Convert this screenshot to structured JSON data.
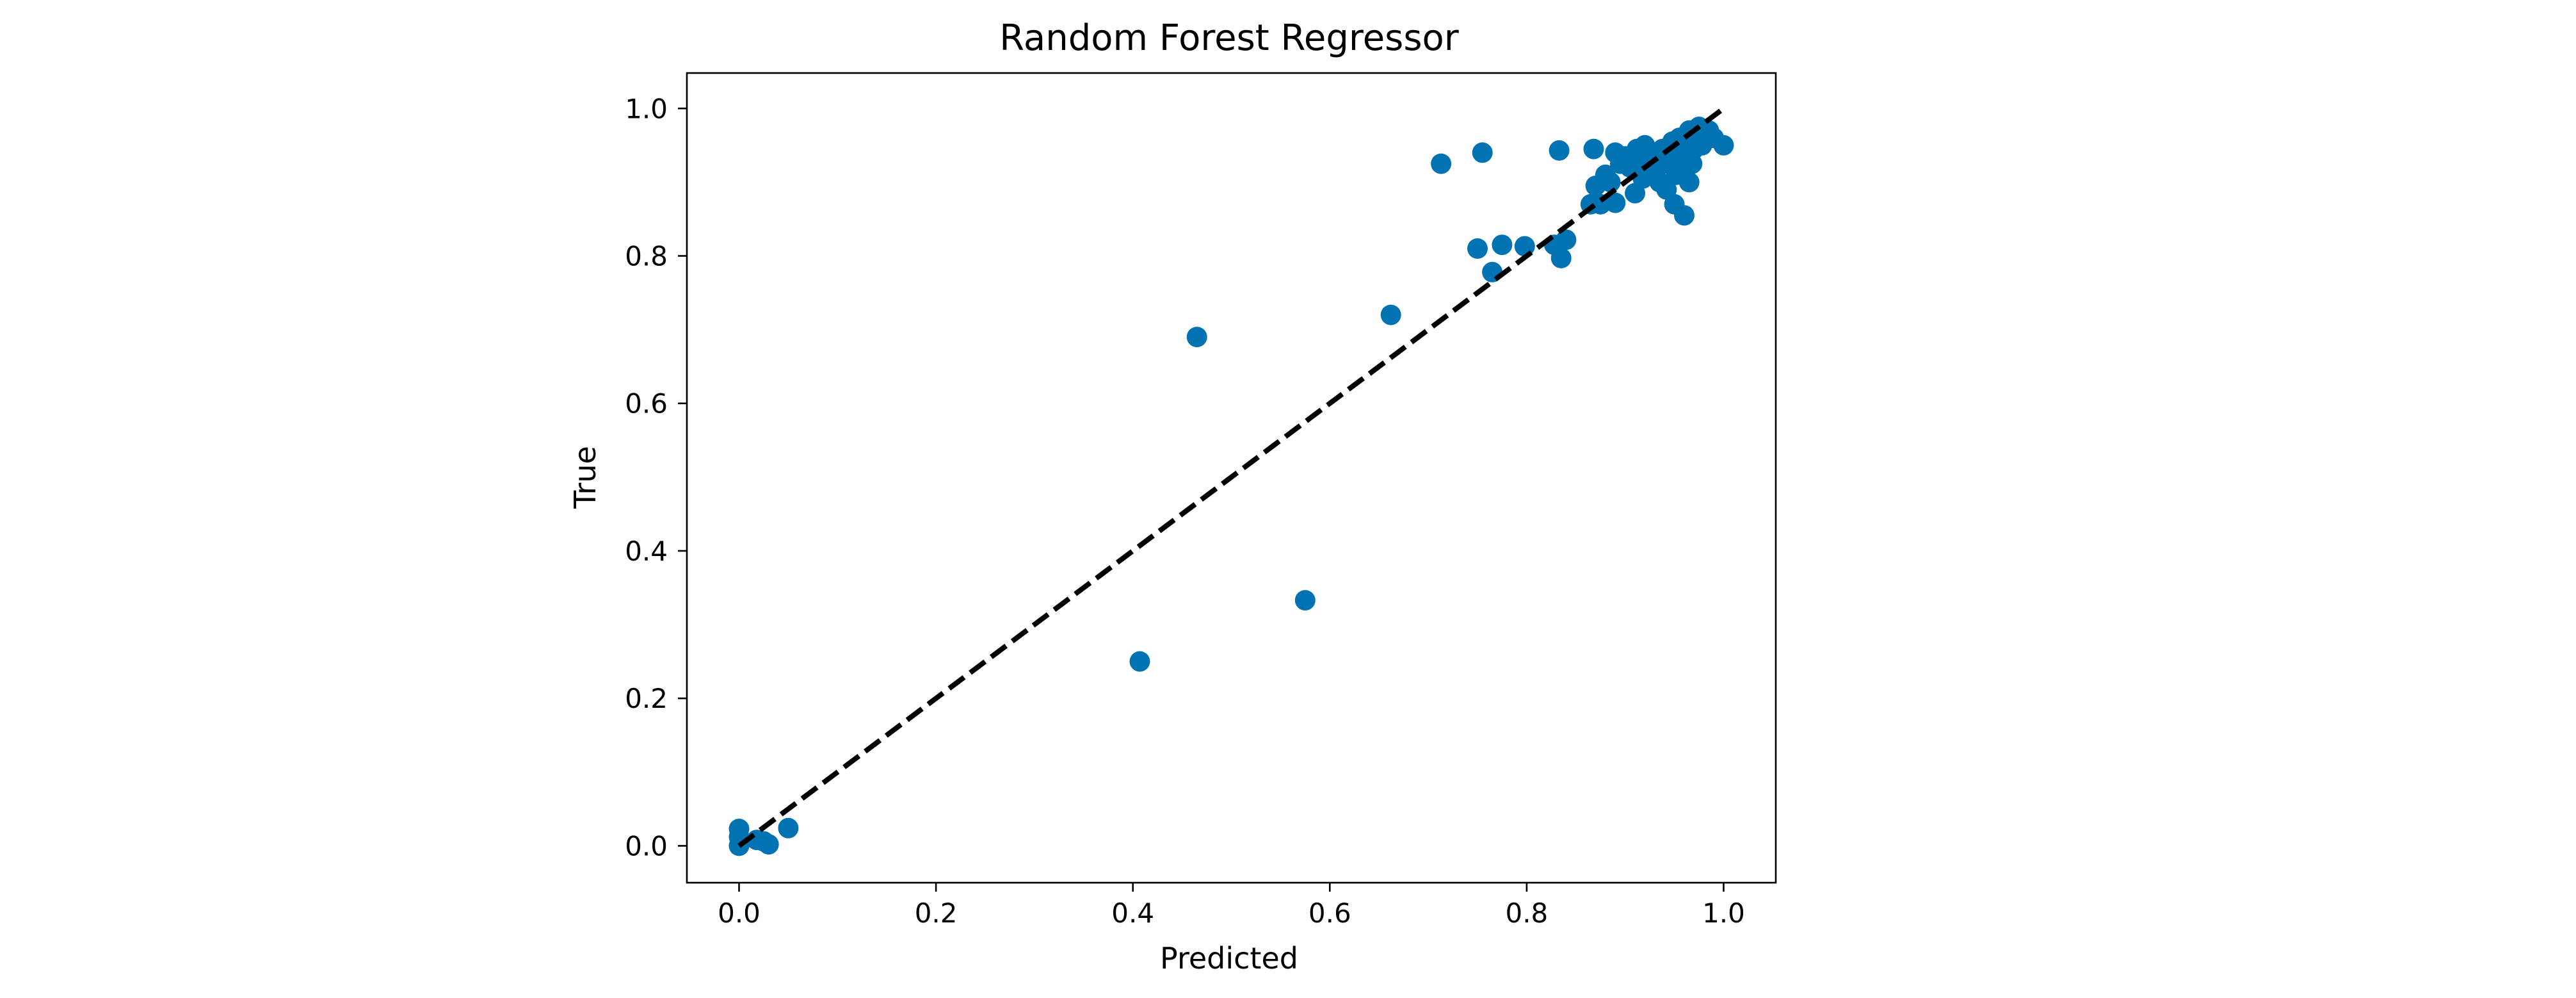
{
  "chart_data": {
    "type": "scatter",
    "title": "Random Forest Regressor",
    "xlabel": "Predicted",
    "ylabel": "True",
    "xlim": [
      -0.053,
      1.053
    ],
    "ylim": [
      -0.05,
      1.048
    ],
    "xticks": [
      0.0,
      0.2,
      0.4,
      0.6,
      0.8,
      1.0
    ],
    "xtick_labels": [
      "0.0",
      "0.2",
      "0.4",
      "0.6",
      "0.8",
      "1.0"
    ],
    "yticks": [
      0.0,
      0.2,
      0.4,
      0.6,
      0.8,
      1.0
    ],
    "ytick_labels": [
      "0.0",
      "0.2",
      "0.4",
      "0.6",
      "0.8",
      "1.0"
    ],
    "grid": false,
    "legend": "none",
    "colors": {
      "points": "#0173b2",
      "reference_line": "#000000"
    },
    "reference_line": {
      "style": "dashed",
      "x": [
        0.0,
        1.0
      ],
      "y": [
        0.0,
        1.0
      ]
    },
    "series": [
      {
        "points": [
          [
            0.0,
            0.023
          ],
          [
            0.0,
            0.012
          ],
          [
            0.0,
            0.0
          ],
          [
            0.002,
            0.006
          ],
          [
            0.018,
            0.008
          ],
          [
            0.025,
            0.006
          ],
          [
            0.03,
            0.002
          ],
          [
            0.05,
            0.024
          ],
          [
            0.407,
            0.25
          ],
          [
            0.465,
            0.69
          ],
          [
            0.575,
            0.333
          ],
          [
            0.662,
            0.72
          ],
          [
            0.713,
            0.925
          ],
          [
            0.75,
            0.81
          ],
          [
            0.755,
            0.94
          ],
          [
            0.765,
            0.778
          ],
          [
            0.775,
            0.815
          ],
          [
            0.798,
            0.813
          ],
          [
            0.828,
            0.815
          ],
          [
            0.833,
            0.943
          ],
          [
            0.835,
            0.797
          ],
          [
            0.84,
            0.822
          ],
          [
            0.865,
            0.87
          ],
          [
            0.868,
            0.945
          ],
          [
            0.87,
            0.895
          ],
          [
            0.875,
            0.87
          ],
          [
            0.88,
            0.91
          ],
          [
            0.885,
            0.9
          ],
          [
            0.89,
            0.872
          ],
          [
            0.89,
            0.94
          ],
          [
            0.895,
            0.925
          ],
          [
            0.9,
            0.935
          ],
          [
            0.905,
            0.92
          ],
          [
            0.91,
            0.885
          ],
          [
            0.912,
            0.945
          ],
          [
            0.915,
            0.93
          ],
          [
            0.918,
            0.905
          ],
          [
            0.92,
            0.95
          ],
          [
            0.925,
            0.92
          ],
          [
            0.928,
            0.94
          ],
          [
            0.93,
            0.91
          ],
          [
            0.935,
            0.9
          ],
          [
            0.938,
            0.945
          ],
          [
            0.94,
            0.925
          ],
          [
            0.942,
            0.89
          ],
          [
            0.945,
            0.935
          ],
          [
            0.948,
            0.955
          ],
          [
            0.95,
            0.87
          ],
          [
            0.952,
            0.91
          ],
          [
            0.955,
            0.96
          ],
          [
            0.958,
            0.93
          ],
          [
            0.96,
            0.855
          ],
          [
            0.962,
            0.94
          ],
          [
            0.965,
            0.9
          ],
          [
            0.965,
            0.97
          ],
          [
            0.968,
            0.925
          ],
          [
            0.97,
            0.945
          ],
          [
            0.972,
            0.96
          ],
          [
            0.975,
            0.975
          ],
          [
            0.978,
            0.95
          ],
          [
            0.98,
            0.965
          ],
          [
            0.985,
            0.97
          ],
          [
            0.99,
            0.96
          ],
          [
            1.0,
            0.95
          ]
        ]
      }
    ]
  }
}
